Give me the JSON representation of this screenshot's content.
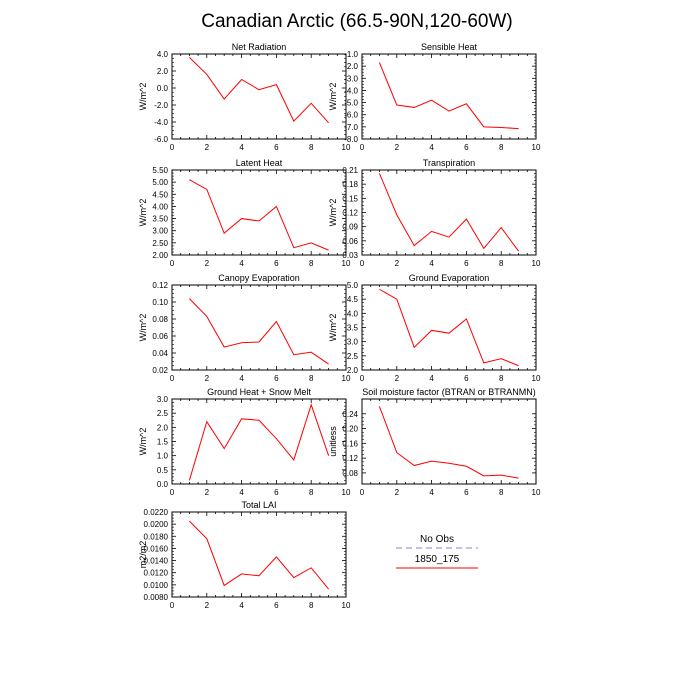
{
  "figure": {
    "title": "Canadian Arctic (66.5-90N,120-60W)"
  },
  "legend": {
    "entries": [
      {
        "label": "No Obs",
        "color": "#9999ee",
        "dash": true
      },
      {
        "label": "1850_175",
        "color": "#ff0000",
        "dash": false
      }
    ]
  },
  "colors": {
    "series": "#ff0000",
    "obs": "#9999ee",
    "axis": "#000000"
  },
  "chart_data": [
    {
      "type": "line",
      "title": "Net Radiation",
      "ylabel": "W/m^2",
      "xlabel": "",
      "xlim": [
        0,
        10
      ],
      "ylim": [
        -6,
        4
      ],
      "xticks": [
        "0",
        "2",
        "4",
        "6",
        "8",
        "10"
      ],
      "yticks": [
        "-6.0",
        "-4.0",
        "-2.0",
        "0.0",
        "2.0",
        "4.0"
      ],
      "x": [
        1,
        2,
        3,
        4,
        5,
        6,
        7,
        8,
        9
      ],
      "series": [
        {
          "values": [
            3.6,
            1.6,
            -1.3,
            1.0,
            -0.2,
            0.4,
            -3.9,
            -1.8,
            -4.1
          ]
        }
      ]
    },
    {
      "type": "line",
      "title": "Sensible Heat",
      "ylabel": "W/m^2",
      "xlabel": "",
      "xlim": [
        0,
        10
      ],
      "ylim": [
        -8,
        -1
      ],
      "xticks": [
        "0",
        "2",
        "4",
        "6",
        "8",
        "10"
      ],
      "yticks": [
        "-8.0",
        "-7.0",
        "-6.0",
        "-5.0",
        "-4.0",
        "-3.0",
        "-2.0",
        "-1.0"
      ],
      "x": [
        1,
        2,
        3,
        4,
        5,
        6,
        7,
        8,
        9
      ],
      "series": [
        {
          "values": [
            -1.7,
            -5.2,
            -5.4,
            -4.8,
            -5.7,
            -5.1,
            -7.0,
            -7.05,
            -7.15
          ]
        }
      ]
    },
    {
      "type": "line",
      "title": "Latent Heat",
      "ylabel": "W/m^2",
      "xlabel": "",
      "xlim": [
        0,
        10
      ],
      "ylim": [
        2.0,
        5.5
      ],
      "xticks": [
        "0",
        "2",
        "4",
        "6",
        "8",
        "10"
      ],
      "yticks": [
        "2.00",
        "2.50",
        "3.00",
        "3.50",
        "4.00",
        "4.50",
        "5.00",
        "5.50"
      ],
      "x": [
        1,
        2,
        3,
        4,
        5,
        6,
        7,
        8,
        9
      ],
      "series": [
        {
          "values": [
            5.1,
            4.7,
            2.9,
            3.5,
            3.4,
            4.0,
            2.3,
            2.5,
            2.2
          ]
        }
      ]
    },
    {
      "type": "line",
      "title": "Transpiration",
      "ylabel": "W/m^2",
      "xlabel": "",
      "xlim": [
        0,
        10
      ],
      "ylim": [
        0.03,
        0.21
      ],
      "xticks": [
        "0",
        "2",
        "4",
        "6",
        "8",
        "10"
      ],
      "yticks": [
        "0.03",
        "0.06",
        "0.09",
        "0.12",
        "0.15",
        "0.18",
        "0.21"
      ],
      "x": [
        1,
        2,
        3,
        4,
        5,
        6,
        7,
        8,
        9
      ],
      "series": [
        {
          "values": [
            0.203,
            0.115,
            0.05,
            0.08,
            0.068,
            0.106,
            0.044,
            0.088,
            0.038
          ]
        }
      ]
    },
    {
      "type": "line",
      "title": "Canopy Evaporation",
      "ylabel": "W/m^2",
      "xlabel": "",
      "xlim": [
        0,
        10
      ],
      "ylim": [
        0.02,
        0.12
      ],
      "xticks": [
        "0",
        "2",
        "4",
        "6",
        "8",
        "10"
      ],
      "yticks": [
        "0.02",
        "0.04",
        "0.06",
        "0.08",
        "0.10",
        "0.12"
      ],
      "x": [
        1,
        2,
        3,
        4,
        5,
        6,
        7,
        8,
        9
      ],
      "series": [
        {
          "values": [
            0.104,
            0.083,
            0.047,
            0.052,
            0.053,
            0.077,
            0.038,
            0.041,
            0.027
          ]
        }
      ]
    },
    {
      "type": "line",
      "title": "Ground Evaporation",
      "ylabel": "W/m^2",
      "xlabel": "",
      "xlim": [
        0,
        10
      ],
      "ylim": [
        2.0,
        5.0
      ],
      "xticks": [
        "0",
        "2",
        "4",
        "6",
        "8",
        "10"
      ],
      "yticks": [
        "2.0",
        "2.5",
        "3.0",
        "3.5",
        "4.0",
        "4.5",
        "5.0"
      ],
      "x": [
        1,
        2,
        3,
        4,
        5,
        6,
        7,
        8,
        9
      ],
      "series": [
        {
          "values": [
            4.85,
            4.5,
            2.8,
            3.4,
            3.3,
            3.8,
            2.25,
            2.4,
            2.15
          ]
        }
      ]
    },
    {
      "type": "line",
      "title": "Ground Heat + Snow Melt",
      "ylabel": "W/m^2",
      "xlabel": "",
      "xlim": [
        0,
        10
      ],
      "ylim": [
        0.0,
        3.0
      ],
      "xticks": [
        "0",
        "2",
        "4",
        "6",
        "8",
        "10"
      ],
      "yticks": [
        "0.0",
        "0.5",
        "1.0",
        "1.5",
        "2.0",
        "2.5",
        "3.0"
      ],
      "x": [
        1,
        2,
        3,
        4,
        5,
        6,
        7,
        8,
        9
      ],
      "series": [
        {
          "values": [
            0.13,
            2.2,
            1.25,
            2.3,
            2.25,
            1.6,
            0.85,
            2.8,
            1.0
          ]
        }
      ]
    },
    {
      "type": "line",
      "title": "Soil moisture factor (BTRAN or BTRANMN)",
      "ylabel": "unitless",
      "xlabel": "",
      "xlim": [
        0,
        10
      ],
      "ylim": [
        0.05,
        0.28
      ],
      "xticks": [
        "0",
        "2",
        "4",
        "6",
        "8",
        "10"
      ],
      "yticks": [
        "0.08",
        "0.12",
        "0.16",
        "0.20",
        "0.24"
      ],
      "x": [
        1,
        2,
        3,
        4,
        5,
        6,
        7,
        8,
        9
      ],
      "series": [
        {
          "values": [
            0.26,
            0.135,
            0.1,
            0.112,
            0.106,
            0.098,
            0.072,
            0.074,
            0.066
          ]
        }
      ]
    },
    {
      "type": "line",
      "title": "Total LAI",
      "ylabel": "m2/m2",
      "xlabel": "",
      "xlim": [
        0,
        10
      ],
      "ylim": [
        0.008,
        0.022
      ],
      "xticks": [
        "0",
        "2",
        "4",
        "6",
        "8",
        "10"
      ],
      "yticks": [
        "0.0080",
        "0.0100",
        "0.0120",
        "0.0140",
        "0.0160",
        "0.0180",
        "0.0200",
        "0.0220"
      ],
      "x": [
        1,
        2,
        3,
        4,
        5,
        6,
        7,
        8,
        9
      ],
      "series": [
        {
          "values": [
            0.0205,
            0.0176,
            0.0099,
            0.0118,
            0.0115,
            0.0146,
            0.0112,
            0.0128,
            0.0093
          ]
        }
      ]
    }
  ]
}
